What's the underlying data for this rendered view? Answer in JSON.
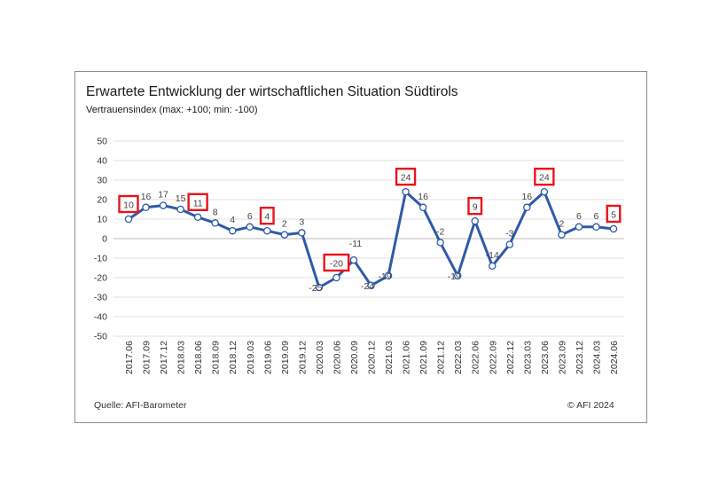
{
  "chart_data": {
    "type": "line",
    "title": "Erwartete Entwicklung der wirtschaftlichen Situation Südtirols",
    "subtitle": "Vertrauensindex (max: +100; min: -100)",
    "source": "Quelle: AFI-Barometer",
    "copyright": "© AFI  2024",
    "ylim": [
      -50,
      50
    ],
    "yticks": [
      50,
      40,
      30,
      20,
      10,
      0,
      -10,
      -20,
      -30,
      -40,
      -50
    ],
    "grid": true,
    "line_color": "#2e5aa8",
    "highlight_color": "#e8141c",
    "categories": [
      "2017.06",
      "2017.09",
      "2017.12",
      "2018.03",
      "2018.06",
      "2018.09",
      "2018.12",
      "2019.03",
      "2019.06",
      "2019.09",
      "2019.12",
      "2020.03",
      "2020.06",
      "2020.09",
      "2020.12",
      "2021.03",
      "2021.06",
      "2021.09",
      "2021.12",
      "2022.03",
      "2022.06",
      "2022.09",
      "2022.12",
      "2023.03",
      "2023.06",
      "2023.09",
      "2023.12",
      "2024.03",
      "2024.06"
    ],
    "values": [
      10,
      16,
      17,
      15,
      11,
      8,
      4,
      6,
      4,
      2,
      3,
      -25,
      -20,
      -11,
      -24,
      -19,
      24,
      16,
      -2,
      -19,
      9,
      -14,
      -3,
      16,
      24,
      2,
      6,
      6,
      5
    ],
    "highlighted_indices": [
      0,
      4,
      8,
      12,
      16,
      20,
      24,
      28
    ]
  }
}
